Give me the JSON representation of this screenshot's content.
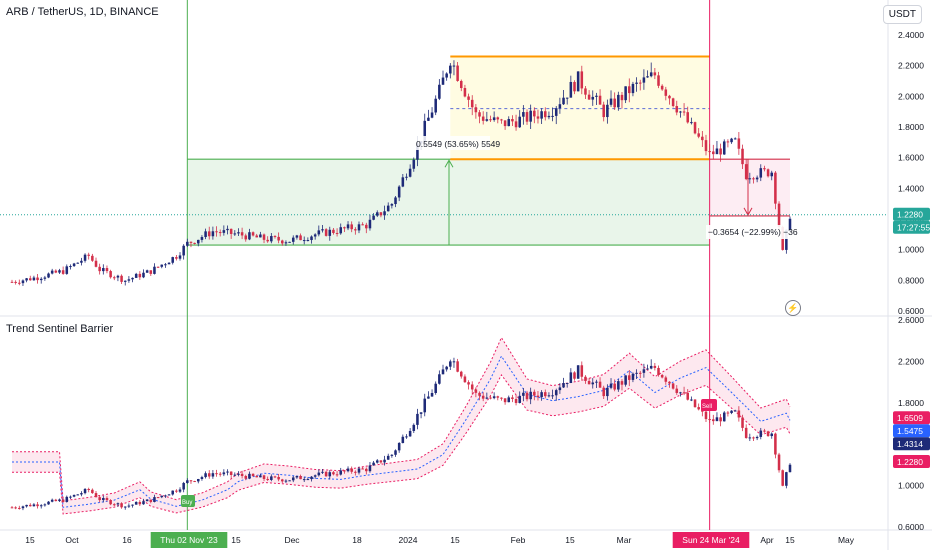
{
  "header": {
    "title": "ARB / TetherUS, 1D, BINANCE",
    "currency": "USDT"
  },
  "indicator": {
    "title": "Trend Sentinel Barrier"
  },
  "icons": {
    "lightning": "lightning-icon"
  },
  "colors": {
    "up": "#1e2a78",
    "down": "#d32f4a",
    "green": "#4caf50",
    "orange": "#ff9800",
    "red_line": "#e91e63",
    "blue_line": "#2962ff"
  },
  "price_axis": {
    "ticks": [
      "2.4000",
      "2.2000",
      "2.0000",
      "1.8000",
      "1.6000",
      "1.4000",
      "1.2000",
      "1.0000",
      "0.8000",
      "0.6000"
    ]
  },
  "indicator_axis": {
    "ticks": [
      "2.6000",
      "2.2000",
      "1.8000",
      "1.4000",
      "1.0000",
      "0.6000"
    ]
  },
  "time_axis": {
    "labels": [
      "15",
      "Oct",
      "16",
      "Thu 02 Nov '23",
      "15",
      "Dec",
      "18",
      "2024",
      "15",
      "Feb",
      "15",
      "Mar",
      "Sun 24 Mar '24",
      "Apr",
      "15",
      "May"
    ]
  },
  "badges": {
    "price_last": "1.2280",
    "countdown": "17:27:55",
    "ind_1": "1.6509",
    "ind_2": "1.5475",
    "ind_3": "1.4314",
    "ind_4": "1.2280"
  },
  "annotations": {
    "long_measure": "0.5549 (53.65%) 5549",
    "short_measure": "−0.3654 (−22.99%) −36",
    "buy_signal": "Buy",
    "sell_signal": "Sell"
  },
  "chart_data": {
    "type": "candlestick",
    "title": "ARB / TetherUS, 1D, BINANCE",
    "ylim": [
      0.6,
      2.4
    ],
    "indicator_ylim": [
      0.6,
      2.6
    ],
    "x_start": "2023-09-15",
    "x_end": "2024-04-15",
    "markers": [
      {
        "date": "2023-11-02",
        "label": "Thu 02 Nov '23"
      },
      {
        "date": "2024-03-24",
        "label": "Sun 24 Mar '24"
      }
    ],
    "close_series": [
      {
        "date": "2023-09-15",
        "close": 0.79
      },
      {
        "date": "2023-09-22",
        "close": 0.82
      },
      {
        "date": "2023-09-29",
        "close": 0.86
      },
      {
        "date": "2023-10-06",
        "close": 0.96
      },
      {
        "date": "2023-10-09",
        "close": 0.87
      },
      {
        "date": "2023-10-16",
        "close": 0.8
      },
      {
        "date": "2023-10-23",
        "close": 0.86
      },
      {
        "date": "2023-10-30",
        "close": 0.96
      },
      {
        "date": "2023-11-02",
        "close": 1.04
      },
      {
        "date": "2023-11-09",
        "close": 1.12
      },
      {
        "date": "2023-11-16",
        "close": 1.1
      },
      {
        "date": "2023-11-23",
        "close": 1.07
      },
      {
        "date": "2023-11-30",
        "close": 1.06
      },
      {
        "date": "2023-12-07",
        "close": 1.1
      },
      {
        "date": "2023-12-14",
        "close": 1.13
      },
      {
        "date": "2023-12-21",
        "close": 1.16
      },
      {
        "date": "2023-12-28",
        "close": 1.3
      },
      {
        "date": "2024-01-03",
        "close": 1.62
      },
      {
        "date": "2024-01-10",
        "close": 2.03
      },
      {
        "date": "2024-01-13",
        "close": 2.25
      },
      {
        "date": "2024-01-20",
        "close": 1.88
      },
      {
        "date": "2024-01-27",
        "close": 1.82
      },
      {
        "date": "2024-02-03",
        "close": 1.86
      },
      {
        "date": "2024-02-10",
        "close": 1.92
      },
      {
        "date": "2024-02-17",
        "close": 2.11
      },
      {
        "date": "2024-02-24",
        "close": 1.9
      },
      {
        "date": "2024-03-02",
        "close": 2.04
      },
      {
        "date": "2024-03-09",
        "close": 2.14
      },
      {
        "date": "2024-03-16",
        "close": 1.9
      },
      {
        "date": "2024-03-24",
        "close": 1.62
      },
      {
        "date": "2024-03-31",
        "close": 1.7
      },
      {
        "date": "2024-04-03",
        "close": 1.49
      },
      {
        "date": "2024-04-10",
        "close": 1.51
      },
      {
        "date": "2024-04-13",
        "close": 0.98
      },
      {
        "date": "2024-04-15",
        "close": 1.228
      }
    ],
    "ranges": {
      "long_box": {
        "from": "2023-11-02",
        "to": "2024-03-24",
        "low": 1.03,
        "high": 1.59,
        "change": "0.5549 (53.65%)"
      },
      "consolidation": {
        "from": "2024-01-13",
        "to": "2024-03-24",
        "low": 1.59,
        "high": 2.26,
        "mid": 1.92
      },
      "short_box": {
        "from": "2024-03-24",
        "to": "2024-04-15",
        "low": 1.22,
        "high": 1.59,
        "change": "−0.3654 (−22.99%)"
      }
    },
    "indicator_series": {
      "upper_band_end": 1.6509,
      "middle_band_end": 1.5475,
      "lower_band_end": 1.4314
    }
  }
}
